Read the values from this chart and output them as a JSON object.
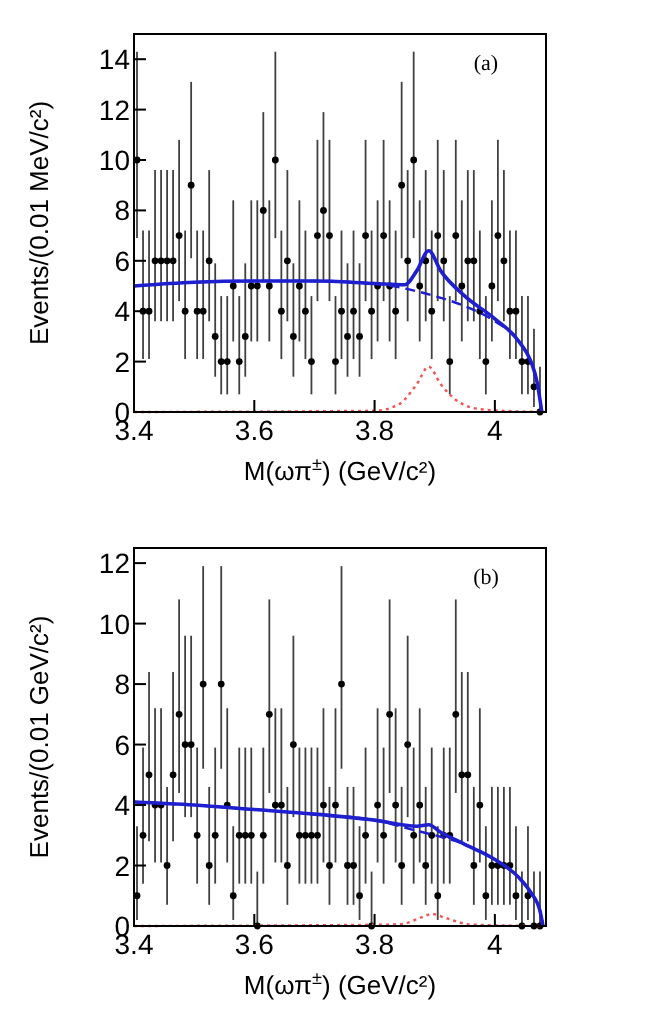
{
  "chart_data": [
    {
      "type": "scatter",
      "xlabel": "M(ωπ$^{±}$) (GeV/c²)",
      "ylabel": "Events/(0.01 MeV/c²)",
      "annotations": [
        "(a)"
      ],
      "xlim": [
        3.4,
        4.085
      ],
      "ylim": [
        0,
        15
      ],
      "xticks": [
        3.4,
        3.6,
        3.8,
        4
      ],
      "yticks": [
        0,
        2,
        4,
        6,
        8,
        10,
        12,
        14
      ],
      "x": [
        3.405,
        3.415,
        3.425,
        3.435,
        3.445,
        3.455,
        3.465,
        3.475,
        3.485,
        3.495,
        3.505,
        3.515,
        3.525,
        3.535,
        3.545,
        3.555,
        3.565,
        3.575,
        3.585,
        3.595,
        3.605,
        3.615,
        3.625,
        3.635,
        3.645,
        3.655,
        3.665,
        3.675,
        3.685,
        3.695,
        3.705,
        3.715,
        3.725,
        3.735,
        3.745,
        3.755,
        3.765,
        3.775,
        3.785,
        3.795,
        3.805,
        3.815,
        3.825,
        3.835,
        3.845,
        3.855,
        3.865,
        3.875,
        3.885,
        3.895,
        3.905,
        3.915,
        3.925,
        3.935,
        3.945,
        3.955,
        3.965,
        3.975,
        3.985,
        3.995,
        4.005,
        4.015,
        4.025,
        4.035,
        4.045,
        4.055,
        4.065,
        4.075
      ],
      "series": [
        {
          "marker": "circle",
          "color": "#000000",
          "values": [
            10,
            4,
            4,
            6,
            6,
            6,
            6,
            7,
            4,
            9,
            4,
            4,
            6,
            3,
            2,
            2,
            5,
            2,
            3,
            5,
            5,
            8,
            5,
            10,
            4,
            6,
            3,
            5,
            4,
            2,
            7,
            8,
            7,
            2,
            4,
            3,
            4,
            3,
            7,
            4,
            5,
            7,
            5,
            4,
            9,
            6,
            10,
            5,
            6,
            4,
            7,
            6,
            2,
            7,
            5,
            6,
            6,
            4,
            2,
            5,
            7,
            6,
            4,
            4,
            2,
            2,
            1,
            0
          ],
          "errors": [
            [
              6.9,
              14.3
            ],
            [
              2.1,
              7.2
            ],
            [
              2.1,
              7.2
            ],
            [
              3.6,
              9.6
            ],
            [
              3.6,
              9.6
            ],
            [
              3.6,
              9.6
            ],
            [
              3.6,
              9.6
            ],
            [
              4.4,
              10.8
            ],
            [
              2.1,
              7.2
            ],
            [
              6.1,
              13.1
            ],
            [
              2.1,
              7.2
            ],
            [
              2.1,
              7.2
            ],
            [
              3.6,
              9.6
            ],
            [
              1.4,
              5.9
            ],
            [
              0.7,
              4.6
            ],
            [
              0.7,
              4.6
            ],
            [
              2.8,
              8.4
            ],
            [
              0.7,
              4.6
            ],
            [
              1.4,
              5.9
            ],
            [
              2.8,
              8.4
            ],
            [
              2.8,
              8.4
            ],
            [
              5.2,
              11.9
            ],
            [
              2.8,
              8.4
            ],
            [
              6.9,
              14.3
            ],
            [
              2.1,
              7.2
            ],
            [
              3.6,
              9.6
            ],
            [
              1.4,
              5.9
            ],
            [
              2.8,
              8.4
            ],
            [
              2.1,
              7.2
            ],
            [
              0.7,
              4.6
            ],
            [
              4.4,
              10.8
            ],
            [
              5.2,
              11.9
            ],
            [
              4.4,
              10.8
            ],
            [
              0.7,
              4.6
            ],
            [
              2.1,
              7.2
            ],
            [
              1.4,
              5.9
            ],
            [
              2.1,
              7.2
            ],
            [
              1.4,
              5.9
            ],
            [
              4.4,
              10.8
            ],
            [
              2.1,
              7.2
            ],
            [
              2.8,
              8.4
            ],
            [
              4.4,
              10.8
            ],
            [
              2.8,
              8.4
            ],
            [
              2.1,
              7.2
            ],
            [
              6.1,
              13.1
            ],
            [
              3.6,
              9.6
            ],
            [
              6.9,
              14.3
            ],
            [
              2.8,
              8.4
            ],
            [
              3.6,
              9.6
            ],
            [
              2.1,
              7.2
            ],
            [
              4.4,
              10.8
            ],
            [
              3.6,
              9.6
            ],
            [
              0.7,
              4.6
            ],
            [
              4.4,
              10.8
            ],
            [
              2.8,
              8.4
            ],
            [
              3.6,
              9.6
            ],
            [
              3.6,
              9.6
            ],
            [
              2.1,
              7.2
            ],
            [
              0.7,
              4.6
            ],
            [
              2.8,
              8.4
            ],
            [
              4.4,
              10.8
            ],
            [
              3.6,
              9.6
            ],
            [
              2.1,
              7.2
            ],
            [
              2.1,
              7.2
            ],
            [
              0.7,
              4.6
            ],
            [
              0.7,
              4.6
            ],
            [
              0.2,
              3.3
            ],
            [
              0,
              1.8
            ]
          ]
        },
        {
          "type": "line",
          "color": "#1f1fd0",
          "line_style": "dashed",
          "x": [
            3.4,
            3.5,
            3.6,
            3.7,
            3.8,
            3.85,
            3.9,
            3.95,
            4.0,
            4.04,
            4.06,
            4.07,
            4.078
          ],
          "values": [
            5.0,
            5.15,
            5.2,
            5.2,
            5.1,
            4.9,
            4.6,
            4.2,
            3.6,
            2.8,
            2.0,
            1.2,
            0
          ]
        },
        {
          "type": "line",
          "color": "#ee5555",
          "line_style": "dotted",
          "x": [
            3.4,
            3.8,
            3.84,
            3.87,
            3.89,
            3.91,
            3.94,
            3.98,
            4.078
          ],
          "values": [
            0,
            0.05,
            0.3,
            1.1,
            1.8,
            1.1,
            0.4,
            0.1,
            0
          ]
        },
        {
          "type": "line",
          "color": "#1f1fd0",
          "line_style": "solid",
          "x": [
            3.4,
            3.5,
            3.6,
            3.7,
            3.8,
            3.85,
            3.87,
            3.89,
            3.91,
            3.95,
            4.0,
            4.04,
            4.06,
            4.07,
            4.078
          ],
          "values": [
            5.0,
            5.15,
            5.2,
            5.2,
            5.1,
            5.05,
            5.6,
            6.4,
            5.6,
            4.6,
            3.7,
            2.8,
            2.0,
            1.2,
            0
          ]
        }
      ]
    },
    {
      "type": "scatter",
      "xlabel": "M(ωπ$^{±}$) (GeV/c²)",
      "ylabel": "Events/(0.01 GeV/c²)",
      "annotations": [
        "(b)"
      ],
      "xlim": [
        3.4,
        4.085
      ],
      "ylim": [
        0,
        12.5
      ],
      "xticks": [
        3.4,
        3.6,
        3.8,
        4
      ],
      "yticks": [
        0,
        2,
        4,
        6,
        8,
        10,
        12
      ],
      "x": [
        3.405,
        3.415,
        3.425,
        3.435,
        3.445,
        3.455,
        3.465,
        3.475,
        3.485,
        3.495,
        3.505,
        3.515,
        3.525,
        3.535,
        3.545,
        3.555,
        3.565,
        3.575,
        3.585,
        3.595,
        3.605,
        3.615,
        3.625,
        3.635,
        3.645,
        3.655,
        3.665,
        3.675,
        3.685,
        3.695,
        3.705,
        3.715,
        3.725,
        3.735,
        3.745,
        3.755,
        3.765,
        3.775,
        3.785,
        3.795,
        3.805,
        3.815,
        3.825,
        3.835,
        3.845,
        3.855,
        3.865,
        3.875,
        3.885,
        3.895,
        3.905,
        3.915,
        3.925,
        3.935,
        3.945,
        3.955,
        3.965,
        3.975,
        3.985,
        3.995,
        4.005,
        4.015,
        4.025,
        4.035,
        4.045,
        4.055,
        4.065,
        4.075
      ],
      "series": [
        {
          "marker": "circle",
          "color": "#000000",
          "values": [
            1,
            3,
            5,
            4,
            4,
            2,
            5,
            7,
            6,
            6,
            3,
            8,
            2,
            3,
            8,
            4,
            1,
            3,
            3,
            3,
            0,
            3,
            7,
            4,
            4,
            2,
            6,
            3,
            3,
            3,
            3,
            4,
            2,
            4,
            8,
            2,
            2,
            1,
            3,
            0,
            4,
            3,
            7,
            4,
            2,
            6,
            3,
            4,
            2,
            3,
            1,
            3,
            3,
            7,
            5,
            5,
            2,
            4,
            1,
            2,
            2,
            2,
            2,
            1,
            0,
            1,
            0,
            0
          ],
          "errors": [
            [
              0.2,
              3.3
            ],
            [
              1.4,
              5.9
            ],
            [
              2.8,
              8.4
            ],
            [
              2.1,
              7.2
            ],
            [
              2.1,
              7.2
            ],
            [
              0.7,
              4.6
            ],
            [
              2.8,
              8.4
            ],
            [
              4.4,
              10.8
            ],
            [
              3.6,
              9.6
            ],
            [
              3.6,
              9.6
            ],
            [
              1.4,
              5.9
            ],
            [
              5.2,
              11.9
            ],
            [
              0.7,
              4.6
            ],
            [
              1.4,
              5.9
            ],
            [
              5.2,
              11.9
            ],
            [
              2.1,
              7.2
            ],
            [
              0.2,
              3.3
            ],
            [
              1.4,
              5.9
            ],
            [
              1.4,
              5.9
            ],
            [
              1.4,
              5.9
            ],
            [
              0,
              1.8
            ],
            [
              1.4,
              5.9
            ],
            [
              4.4,
              10.8
            ],
            [
              2.1,
              7.2
            ],
            [
              2.1,
              7.2
            ],
            [
              0.7,
              4.6
            ],
            [
              3.6,
              9.6
            ],
            [
              1.4,
              5.9
            ],
            [
              1.4,
              5.9
            ],
            [
              1.4,
              5.9
            ],
            [
              1.4,
              5.9
            ],
            [
              2.1,
              7.2
            ],
            [
              0.7,
              4.6
            ],
            [
              2.1,
              7.2
            ],
            [
              5.2,
              11.9
            ],
            [
              0.7,
              4.6
            ],
            [
              0.7,
              4.6
            ],
            [
              0.2,
              3.3
            ],
            [
              1.4,
              5.9
            ],
            [
              0,
              1.8
            ],
            [
              2.1,
              7.2
            ],
            [
              1.4,
              5.9
            ],
            [
              4.4,
              10.8
            ],
            [
              2.1,
              7.2
            ],
            [
              0.7,
              4.6
            ],
            [
              3.6,
              9.6
            ],
            [
              1.4,
              5.9
            ],
            [
              2.1,
              7.2
            ],
            [
              0.7,
              4.6
            ],
            [
              1.4,
              5.9
            ],
            [
              0.2,
              3.3
            ],
            [
              1.4,
              5.9
            ],
            [
              1.4,
              5.9
            ],
            [
              4.4,
              10.8
            ],
            [
              2.8,
              8.4
            ],
            [
              2.8,
              8.4
            ],
            [
              0.7,
              4.6
            ],
            [
              2.1,
              7.2
            ],
            [
              0.2,
              3.3
            ],
            [
              0.7,
              4.6
            ],
            [
              0.7,
              4.6
            ],
            [
              0.7,
              4.6
            ],
            [
              0.7,
              4.6
            ],
            [
              0.2,
              3.3
            ],
            [
              0,
              1.8
            ],
            [
              0.2,
              3.3
            ],
            [
              0,
              1.8
            ],
            [
              0,
              1.8
            ]
          ]
        },
        {
          "type": "line",
          "color": "#1f1fd0",
          "line_style": "dashed",
          "x": [
            3.4,
            3.5,
            3.6,
            3.7,
            3.8,
            3.87,
            3.89,
            3.91,
            3.95,
            4.0,
            4.04,
            4.06,
            4.075,
            4.08
          ],
          "values": [
            4.1,
            4.0,
            3.85,
            3.7,
            3.5,
            3.15,
            3.05,
            2.95,
            2.7,
            2.2,
            1.6,
            1.1,
            0.5,
            0
          ]
        },
        {
          "type": "line",
          "color": "#ee5555",
          "line_style": "dotted",
          "x": [
            3.4,
            3.84,
            3.88,
            3.895,
            3.92,
            3.96,
            4.08
          ],
          "values": [
            0,
            0.05,
            0.3,
            0.4,
            0.25,
            0.05,
            0
          ]
        },
        {
          "type": "line",
          "color": "#1f1fd0",
          "line_style": "solid",
          "x": [
            3.4,
            3.5,
            3.6,
            3.7,
            3.8,
            3.87,
            3.89,
            3.91,
            3.95,
            4.0,
            4.04,
            4.06,
            4.075,
            4.08
          ],
          "values": [
            4.1,
            4.0,
            3.85,
            3.7,
            3.5,
            3.3,
            3.35,
            3.1,
            2.7,
            2.2,
            1.6,
            1.1,
            0.5,
            0
          ]
        }
      ]
    }
  ]
}
